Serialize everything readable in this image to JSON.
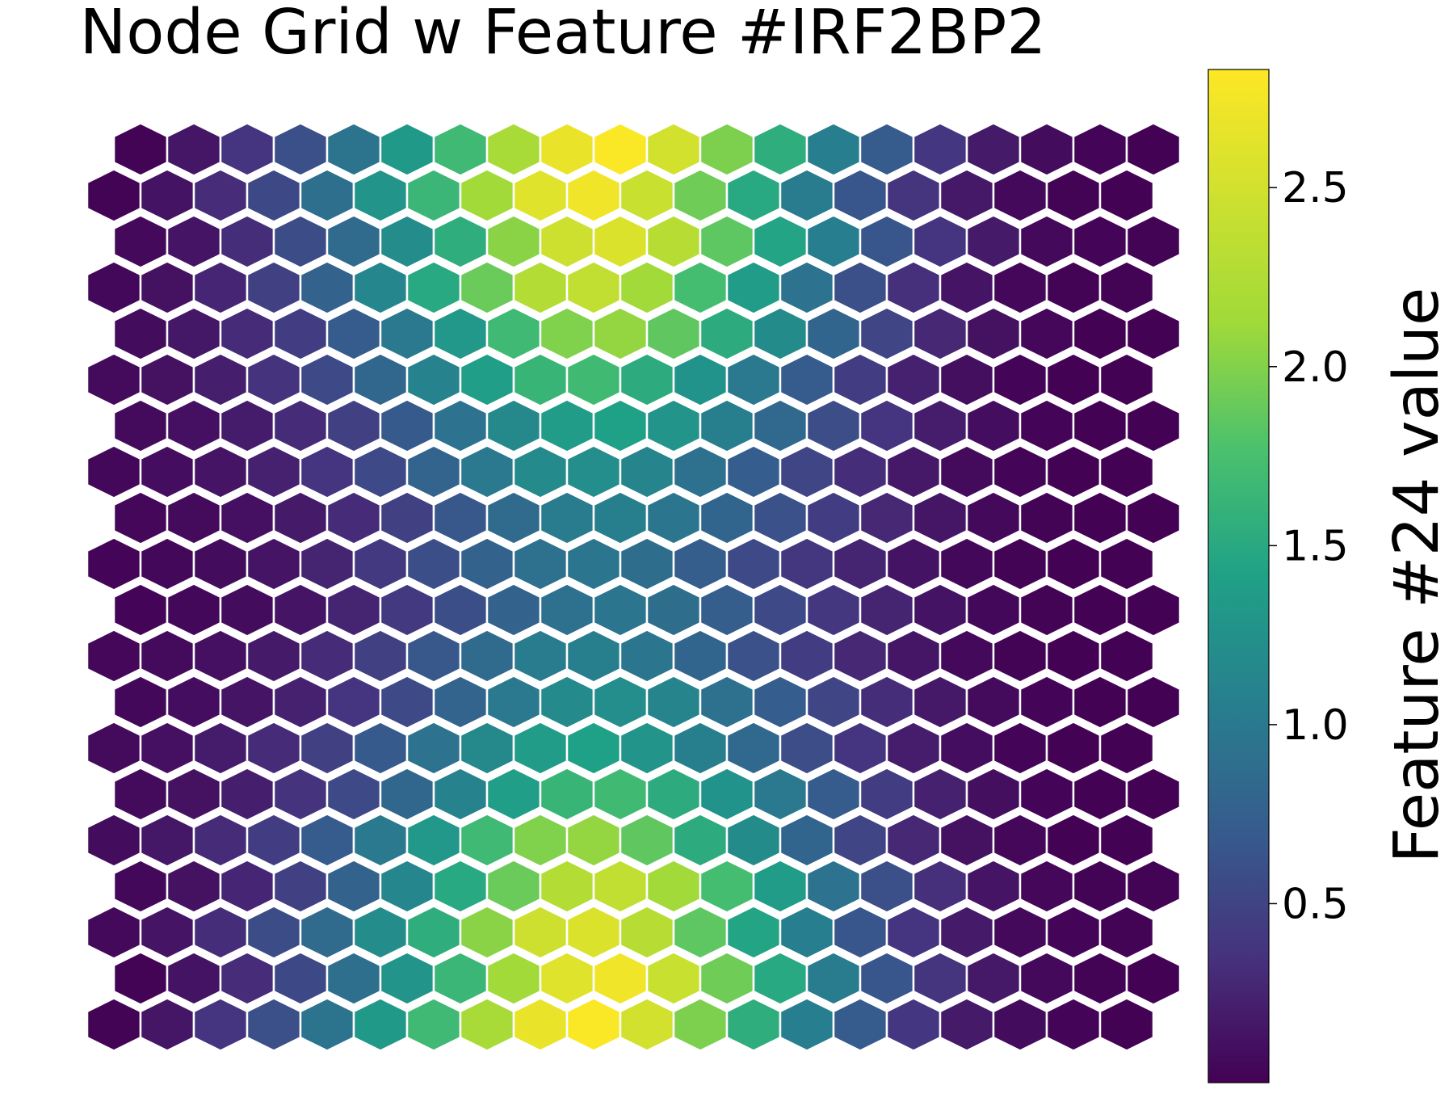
{
  "chart_data": {
    "type": "heatmap",
    "title": "Node Grid w Feature #IRF2BP2",
    "layout": "hexagonal",
    "grid_rows": 20,
    "grid_cols": 20,
    "colormap": "viridis",
    "colorbar": {
      "label": "Feature #24 value",
      "range": [
        0.0,
        2.83
      ],
      "ticks": [
        0.5,
        1.0,
        1.5,
        2.0,
        2.5
      ],
      "tick_labels": [
        "0.5",
        "1.0",
        "1.5",
        "2.0",
        "2.5"
      ]
    },
    "values": [
      [
        0.02,
        0.15,
        0.37,
        0.6,
        0.95,
        1.33,
        1.68,
        2.18,
        2.68,
        2.81,
        2.5,
        1.98,
        1.55,
        1.05,
        0.7,
        0.39,
        0.18,
        0.08,
        0.03,
        0.01
      ],
      [
        0.02,
        0.13,
        0.31,
        0.55,
        0.9,
        1.28,
        1.65,
        2.13,
        2.6,
        2.73,
        2.43,
        1.92,
        1.5,
        1.03,
        0.66,
        0.38,
        0.17,
        0.06,
        0.02,
        0.01
      ],
      [
        0.06,
        0.14,
        0.32,
        0.57,
        0.85,
        1.2,
        1.55,
        2.03,
        2.47,
        2.57,
        2.3,
        1.85,
        1.45,
        1.05,
        0.66,
        0.37,
        0.18,
        0.06,
        0.03,
        0.02
      ],
      [
        0.05,
        0.12,
        0.27,
        0.47,
        0.78,
        1.13,
        1.5,
        1.9,
        2.27,
        2.37,
        2.13,
        1.72,
        1.36,
        0.93,
        0.6,
        0.33,
        0.14,
        0.04,
        0.02,
        0.02
      ],
      [
        0.08,
        0.16,
        0.3,
        0.45,
        0.7,
        1.0,
        1.32,
        1.68,
        1.99,
        2.07,
        1.86,
        1.53,
        1.19,
        0.8,
        0.51,
        0.28,
        0.12,
        0.04,
        0.01,
        0.01
      ],
      [
        0.07,
        0.12,
        0.22,
        0.36,
        0.56,
        0.82,
        1.09,
        1.38,
        1.63,
        1.69,
        1.53,
        1.27,
        1.0,
        0.7,
        0.44,
        0.23,
        0.1,
        0.03,
        0.01,
        0.01
      ],
      [
        0.07,
        0.11,
        0.19,
        0.3,
        0.47,
        0.69,
        0.93,
        1.17,
        1.36,
        1.41,
        1.28,
        1.06,
        0.83,
        0.58,
        0.37,
        0.2,
        0.09,
        0.03,
        0.01,
        0.01
      ],
      [
        0.05,
        0.09,
        0.14,
        0.23,
        0.37,
        0.56,
        0.79,
        1.0,
        1.18,
        1.22,
        1.11,
        0.92,
        0.72,
        0.51,
        0.32,
        0.17,
        0.07,
        0.03,
        0.01,
        0.01
      ],
      [
        0.04,
        0.07,
        0.11,
        0.18,
        0.3,
        0.47,
        0.67,
        0.86,
        1.02,
        1.06,
        0.97,
        0.8,
        0.62,
        0.44,
        0.28,
        0.15,
        0.06,
        0.02,
        0.01,
        0.01
      ],
      [
        0.03,
        0.05,
        0.08,
        0.14,
        0.25,
        0.41,
        0.59,
        0.77,
        0.92,
        0.96,
        0.88,
        0.73,
        0.56,
        0.4,
        0.25,
        0.13,
        0.05,
        0.02,
        0.01,
        0.01
      ],
      [
        0.03,
        0.05,
        0.08,
        0.14,
        0.25,
        0.41,
        0.59,
        0.77,
        0.92,
        0.96,
        0.88,
        0.73,
        0.56,
        0.4,
        0.25,
        0.13,
        0.05,
        0.02,
        0.01,
        0.01
      ],
      [
        0.04,
        0.07,
        0.11,
        0.18,
        0.3,
        0.47,
        0.67,
        0.86,
        1.02,
        1.06,
        0.97,
        0.8,
        0.62,
        0.44,
        0.28,
        0.15,
        0.06,
        0.02,
        0.01,
        0.01
      ],
      [
        0.05,
        0.09,
        0.14,
        0.23,
        0.37,
        0.56,
        0.79,
        1.0,
        1.18,
        1.22,
        1.11,
        0.92,
        0.72,
        0.51,
        0.32,
        0.17,
        0.07,
        0.03,
        0.01,
        0.01
      ],
      [
        0.07,
        0.11,
        0.19,
        0.3,
        0.47,
        0.69,
        0.93,
        1.17,
        1.36,
        1.41,
        1.28,
        1.06,
        0.83,
        0.58,
        0.37,
        0.2,
        0.09,
        0.03,
        0.01,
        0.01
      ],
      [
        0.07,
        0.12,
        0.22,
        0.36,
        0.56,
        0.82,
        1.09,
        1.38,
        1.63,
        1.69,
        1.53,
        1.27,
        1.0,
        0.7,
        0.44,
        0.23,
        0.1,
        0.03,
        0.01,
        0.01
      ],
      [
        0.08,
        0.16,
        0.3,
        0.45,
        0.7,
        1.0,
        1.32,
        1.68,
        1.99,
        2.07,
        1.86,
        1.53,
        1.19,
        0.8,
        0.51,
        0.28,
        0.12,
        0.04,
        0.01,
        0.01
      ],
      [
        0.05,
        0.12,
        0.27,
        0.47,
        0.78,
        1.13,
        1.5,
        1.9,
        2.27,
        2.37,
        2.13,
        1.72,
        1.36,
        0.93,
        0.6,
        0.33,
        0.14,
        0.04,
        0.02,
        0.02
      ],
      [
        0.06,
        0.14,
        0.32,
        0.57,
        0.85,
        1.2,
        1.55,
        2.03,
        2.47,
        2.57,
        2.3,
        1.85,
        1.45,
        1.05,
        0.66,
        0.37,
        0.18,
        0.06,
        0.03,
        0.02
      ],
      [
        0.02,
        0.13,
        0.31,
        0.55,
        0.9,
        1.28,
        1.65,
        2.13,
        2.6,
        2.73,
        2.43,
        1.92,
        1.5,
        1.03,
        0.66,
        0.38,
        0.17,
        0.06,
        0.02,
        0.01
      ],
      [
        0.02,
        0.15,
        0.37,
        0.6,
        0.95,
        1.33,
        1.68,
        2.18,
        2.68,
        2.81,
        2.5,
        1.98,
        1.55,
        1.05,
        0.7,
        0.39,
        0.18,
        0.08,
        0.03,
        0.01
      ]
    ]
  }
}
